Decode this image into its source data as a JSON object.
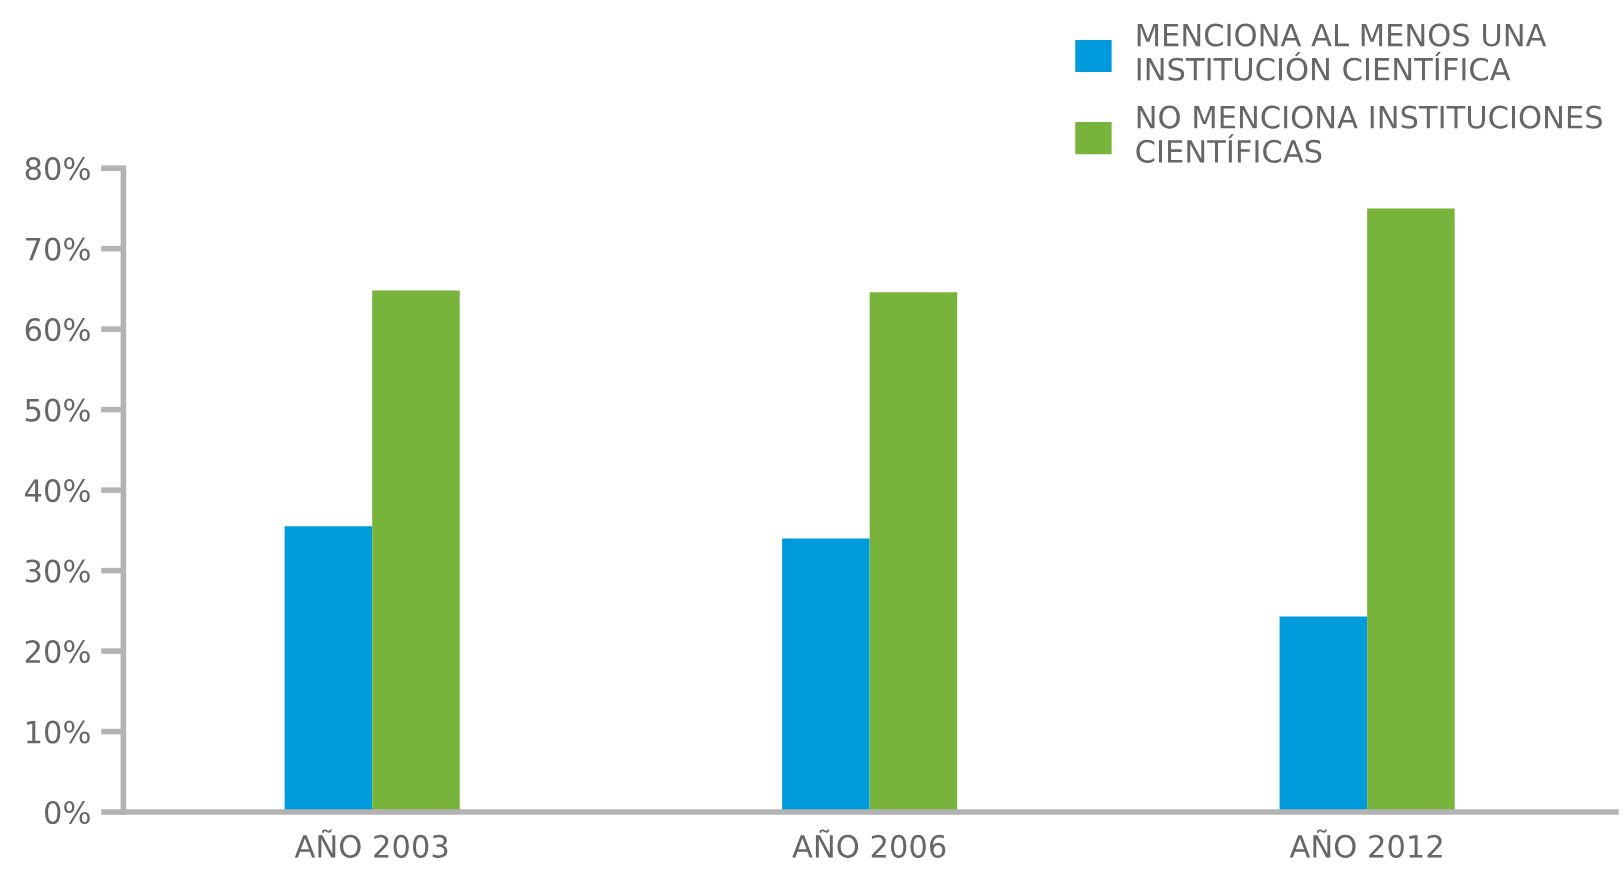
{
  "chart_data": {
    "type": "bar",
    "categories": [
      "AÑO 2003",
      "AÑO 2006",
      "AÑO 2012"
    ],
    "series": [
      {
        "name": "MENCIONA AL MENOS UNA\nINSTITUCIÓN CIENTÍFICA",
        "color": "#009bdc",
        "values": [
          35.5,
          34.0,
          24.3
        ]
      },
      {
        "name": "NO MENCIONA INSTITUCIONES\nCIENTÍFICAS",
        "color": "#78b33c",
        "values": [
          64.8,
          64.6,
          75.0
        ]
      }
    ],
    "ylim": [
      0,
      80
    ],
    "yticks": [
      {
        "value": 0,
        "label": "0%"
      },
      {
        "value": 10,
        "label": "10%"
      },
      {
        "value": 20,
        "label": "20%"
      },
      {
        "value": 30,
        "label": "30%"
      },
      {
        "value": 40,
        "label": "40%"
      },
      {
        "value": 50,
        "label": "50%"
      },
      {
        "value": 60,
        "label": "60%"
      },
      {
        "value": 70,
        "label": "70%"
      },
      {
        "value": 80,
        "label": "80%"
      }
    ],
    "grid": false,
    "legend": "top right"
  }
}
